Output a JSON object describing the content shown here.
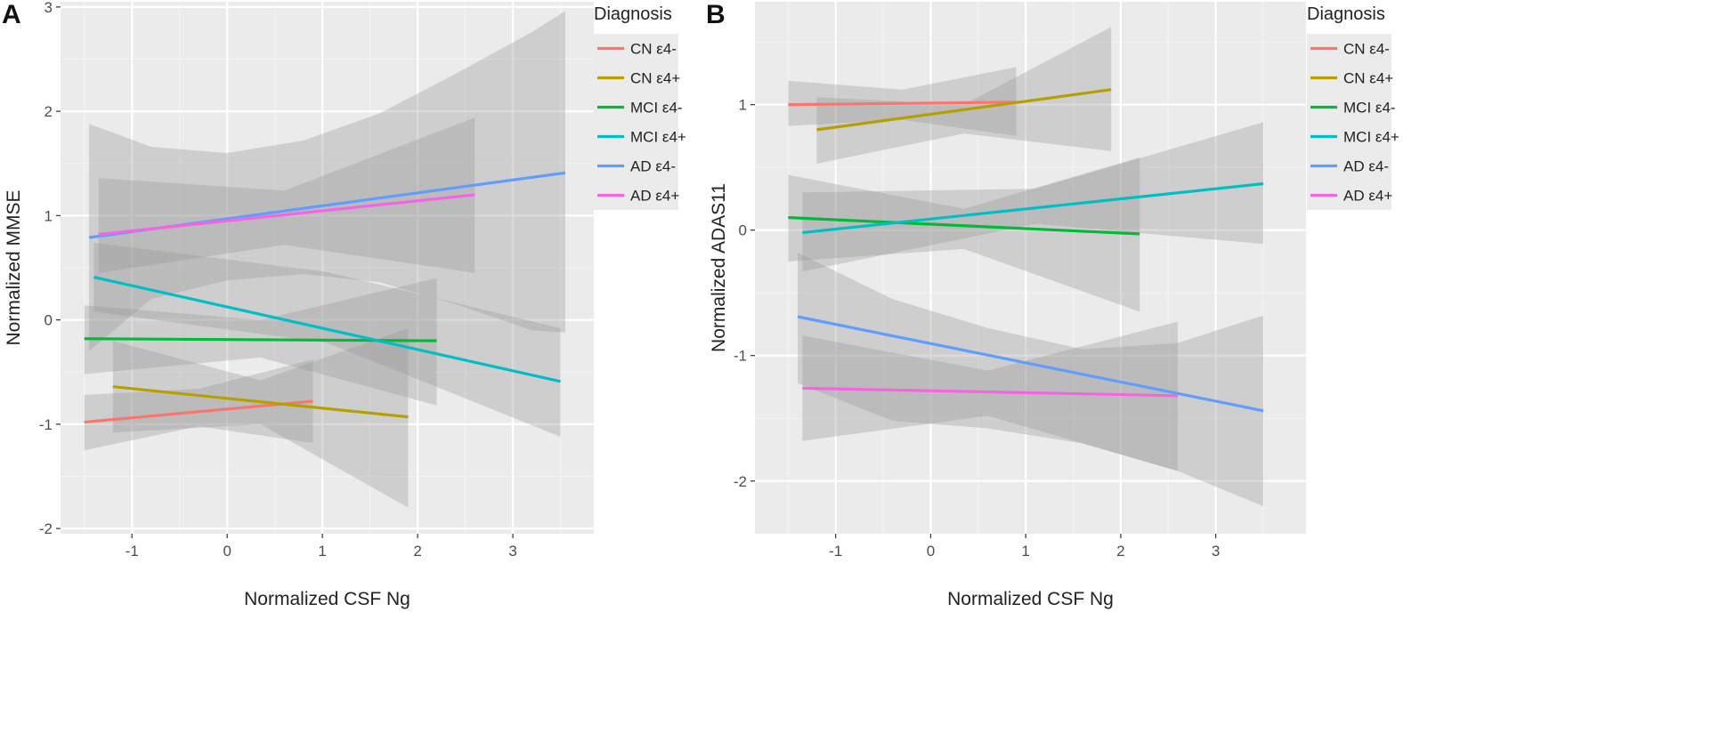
{
  "colors": {
    "CN e4-": "#F8766D",
    "CN e4+": "#B79F00",
    "MCI e4-": "#00BA38",
    "MCI e4+": "#00BFC4",
    "AD e4-": "#619CFF",
    "AD e4+": "#F564E3",
    "panel_bg": "#EBEBEB",
    "band": "#999999"
  },
  "chart_data": [
    {
      "type": "line",
      "panel_label": "A",
      "xlabel": "Normalized CSF Ng",
      "ylabel": "Normalized MMSE",
      "xlim": [
        -1.75,
        3.85
      ],
      "ylim": [
        -2.05,
        3.05
      ],
      "x_ticks": [
        -1,
        0,
        1,
        2,
        3
      ],
      "x_tick_labels": [
        "-1",
        "0",
        "1",
        "2",
        "3"
      ],
      "y_ticks": [
        -2,
        -1,
        0,
        1,
        2,
        3
      ],
      "y_tick_labels": [
        "-2",
        "-1",
        "0",
        "1",
        "2",
        "3"
      ],
      "legend": {
        "title": "Diagnosis",
        "position": "right",
        "entries": [
          "CN ε4-",
          "CN ε4+",
          "MCI ε4-",
          "MCI ε4+",
          "AD ε4-",
          "AD ε4+"
        ]
      },
      "series": [
        {
          "name": "CN ε4-",
          "key": "CN e4-",
          "x": [
            -1.5,
            0.9
          ],
          "y": [
            -0.98,
            -0.78
          ],
          "band": {
            "x": [
              -1.5,
              -0.3,
              0.9
            ],
            "lower": [
              -1.25,
              -1.02,
              -1.18
            ],
            "upper": [
              -0.72,
              -0.66,
              -0.38
            ]
          }
        },
        {
          "name": "CN ε4+",
          "key": "CN e4+",
          "x": [
            -1.2,
            1.9
          ],
          "y": [
            -0.64,
            -0.93
          ],
          "band": {
            "x": [
              -1.2,
              0.35,
              1.9
            ],
            "lower": [
              -1.08,
              -1.0,
              -1.8
            ],
            "upper": [
              -0.2,
              -0.58,
              -0.08
            ]
          }
        },
        {
          "name": "MCI ε4-",
          "key": "MCI e4-",
          "x": [
            -1.5,
            2.2
          ],
          "y": [
            -0.18,
            -0.2
          ],
          "band": {
            "x": [
              -1.5,
              0.35,
              2.2
            ],
            "lower": [
              -0.52,
              -0.36,
              -0.82
            ],
            "upper": [
              0.14,
              0.0,
              0.4
            ]
          }
        },
        {
          "name": "MCI ε4+",
          "key": "MCI e4+",
          "x": [
            -1.4,
            3.5
          ],
          "y": [
            0.41,
            -0.59
          ],
          "band": {
            "x": [
              -1.4,
              1.05,
              3.5
            ],
            "lower": [
              0.08,
              -0.22,
              -1.12
            ],
            "upper": [
              0.74,
              0.46,
              -0.08
            ]
          }
        },
        {
          "name": "AD ε4-",
          "key": "AD e4-",
          "x": [
            -1.45,
            3.55
          ],
          "y": [
            0.79,
            1.41
          ],
          "band": {
            "x": [
              -1.45,
              -0.8,
              0.0,
              0.8,
              1.6,
              2.4,
              3.2,
              3.55
            ],
            "lower": [
              -0.3,
              0.2,
              0.38,
              0.44,
              0.36,
              0.15,
              -0.1,
              -0.12
            ],
            "upper": [
              1.88,
              1.66,
              1.6,
              1.72,
              1.98,
              2.36,
              2.76,
              2.96
            ]
          }
        },
        {
          "name": "AD ε4+",
          "key": "AD e4+",
          "x": [
            -1.35,
            2.6
          ],
          "y": [
            0.82,
            1.2
          ],
          "band": {
            "x": [
              -1.35,
              0.6,
              2.6
            ],
            "lower": [
              0.45,
              0.72,
              0.45
            ],
            "upper": [
              1.36,
              1.24,
              1.94
            ]
          }
        }
      ]
    },
    {
      "type": "line",
      "panel_label": "B",
      "xlabel": "Normalized CSF Ng",
      "ylabel": "Normalized ADAS11",
      "xlim": [
        -1.85,
        3.95
      ],
      "ylim": [
        -2.42,
        1.82
      ],
      "x_ticks": [
        -1,
        0,
        1,
        2,
        3
      ],
      "x_tick_labels": [
        "-1",
        "0",
        "1",
        "2",
        "3"
      ],
      "y_ticks": [
        -2,
        -1,
        0,
        1
      ],
      "y_tick_labels": [
        "-2",
        "-1",
        "0",
        "1"
      ],
      "legend": {
        "title": "Diagnosis",
        "position": "right",
        "entries": [
          "CN ε4-",
          "CN ε4+",
          "MCI ε4-",
          "MCI ε4+",
          "AD ε4-",
          "AD ε4+"
        ]
      },
      "series": [
        {
          "name": "CN ε4-",
          "key": "CN e4-",
          "x": [
            -1.5,
            0.9
          ],
          "y": [
            1.0,
            1.02
          ],
          "band": {
            "x": [
              -1.5,
              -0.3,
              0.9
            ],
            "lower": [
              0.83,
              0.88,
              0.75
            ],
            "upper": [
              1.19,
              1.12,
              1.3
            ]
          }
        },
        {
          "name": "CN ε4+",
          "key": "CN e4+",
          "x": [
            -1.2,
            1.9
          ],
          "y": [
            0.8,
            1.12
          ],
          "band": {
            "x": [
              -1.2,
              0.35,
              1.9
            ],
            "lower": [
              0.53,
              0.77,
              0.63
            ],
            "upper": [
              1.06,
              1.0,
              1.62
            ]
          }
        },
        {
          "name": "MCI ε4-",
          "key": "MCI e4-",
          "x": [
            -1.5,
            2.2
          ],
          "y": [
            0.1,
            -0.03
          ],
          "band": {
            "x": [
              -1.5,
              0.35,
              2.2
            ],
            "lower": [
              -0.25,
              -0.15,
              -0.65
            ],
            "upper": [
              0.44,
              0.17,
              0.58
            ]
          }
        },
        {
          "name": "MCI ε4+",
          "key": "MCI e4+",
          "x": [
            -1.35,
            3.5
          ],
          "y": [
            -0.02,
            0.37
          ],
          "band": {
            "x": [
              -1.35,
              1.1,
              3.5
            ],
            "lower": [
              -0.33,
              0.05,
              -0.11
            ],
            "upper": [
              0.3,
              0.33,
              0.86
            ]
          }
        },
        {
          "name": "AD ε4-",
          "key": "AD e4-",
          "x": [
            -1.4,
            3.5
          ],
          "y": [
            -0.69,
            -1.44
          ],
          "band": {
            "x": [
              -1.4,
              -0.4,
              0.6,
              1.6,
              2.6,
              3.5
            ],
            "lower": [
              -1.22,
              -1.52,
              -1.58,
              -1.7,
              -1.92,
              -2.2
            ],
            "upper": [
              -0.18,
              -0.55,
              -0.78,
              -0.95,
              -0.9,
              -0.68
            ]
          }
        },
        {
          "name": "AD ε4+",
          "key": "AD e4+",
          "x": [
            -1.35,
            2.6
          ],
          "y": [
            -1.26,
            -1.32
          ],
          "band": {
            "x": [
              -1.35,
              0.6,
              2.6
            ],
            "lower": [
              -1.68,
              -1.48,
              -1.92
            ],
            "upper": [
              -0.84,
              -1.12,
              -0.73
            ]
          }
        }
      ]
    }
  ]
}
